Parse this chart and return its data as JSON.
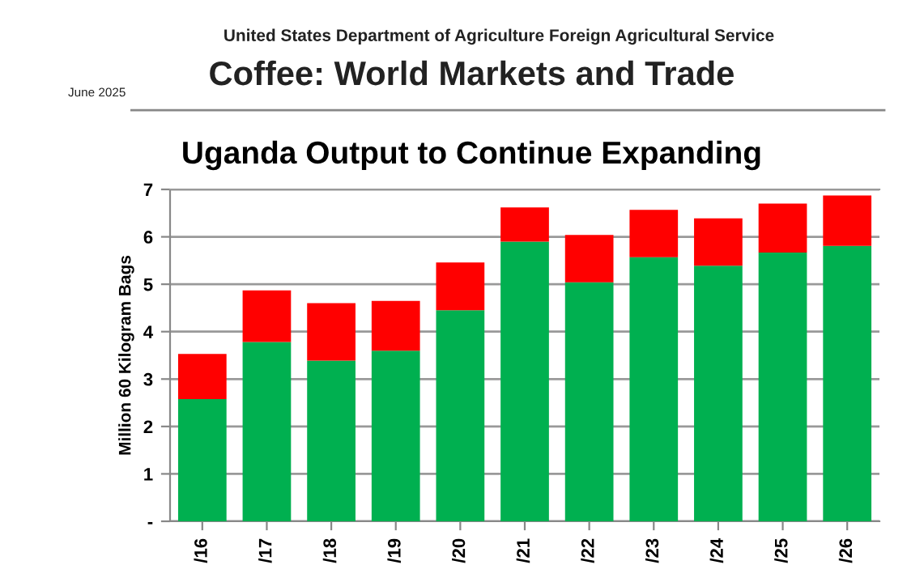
{
  "chart_data": {
    "type": "bar",
    "title": "Uganda Output to Continue Expanding",
    "annotations": [
      "United States Department of Agriculture Foreign Agricultural Service",
      "Coffee: World Markets and Trade",
      "June 2025"
    ],
    "ylabel": "Million 60 Kilogram Bags",
    "categories": [
      "/16",
      "/17",
      "/18",
      "/19",
      "/20",
      "/21",
      "/22",
      "/23",
      "/24",
      "/25",
      "/26"
    ],
    "stacked": true,
    "series": [
      {
        "color": "#00b050",
        "values": [
          2.58,
          3.78,
          3.39,
          3.6,
          4.45,
          5.9,
          5.04,
          5.57,
          5.39,
          5.67,
          5.81
        ]
      },
      {
        "color": "#ff0000",
        "values": [
          0.95,
          1.09,
          1.21,
          1.05,
          1.01,
          0.72,
          1.0,
          1.0,
          1.0,
          1.03,
          1.06
        ]
      }
    ],
    "ylim": [
      0,
      7
    ],
    "yticks": [
      {
        "value": 0,
        "label": "-"
      },
      1,
      2,
      3,
      4,
      5,
      6,
      7
    ],
    "grid": "y"
  }
}
